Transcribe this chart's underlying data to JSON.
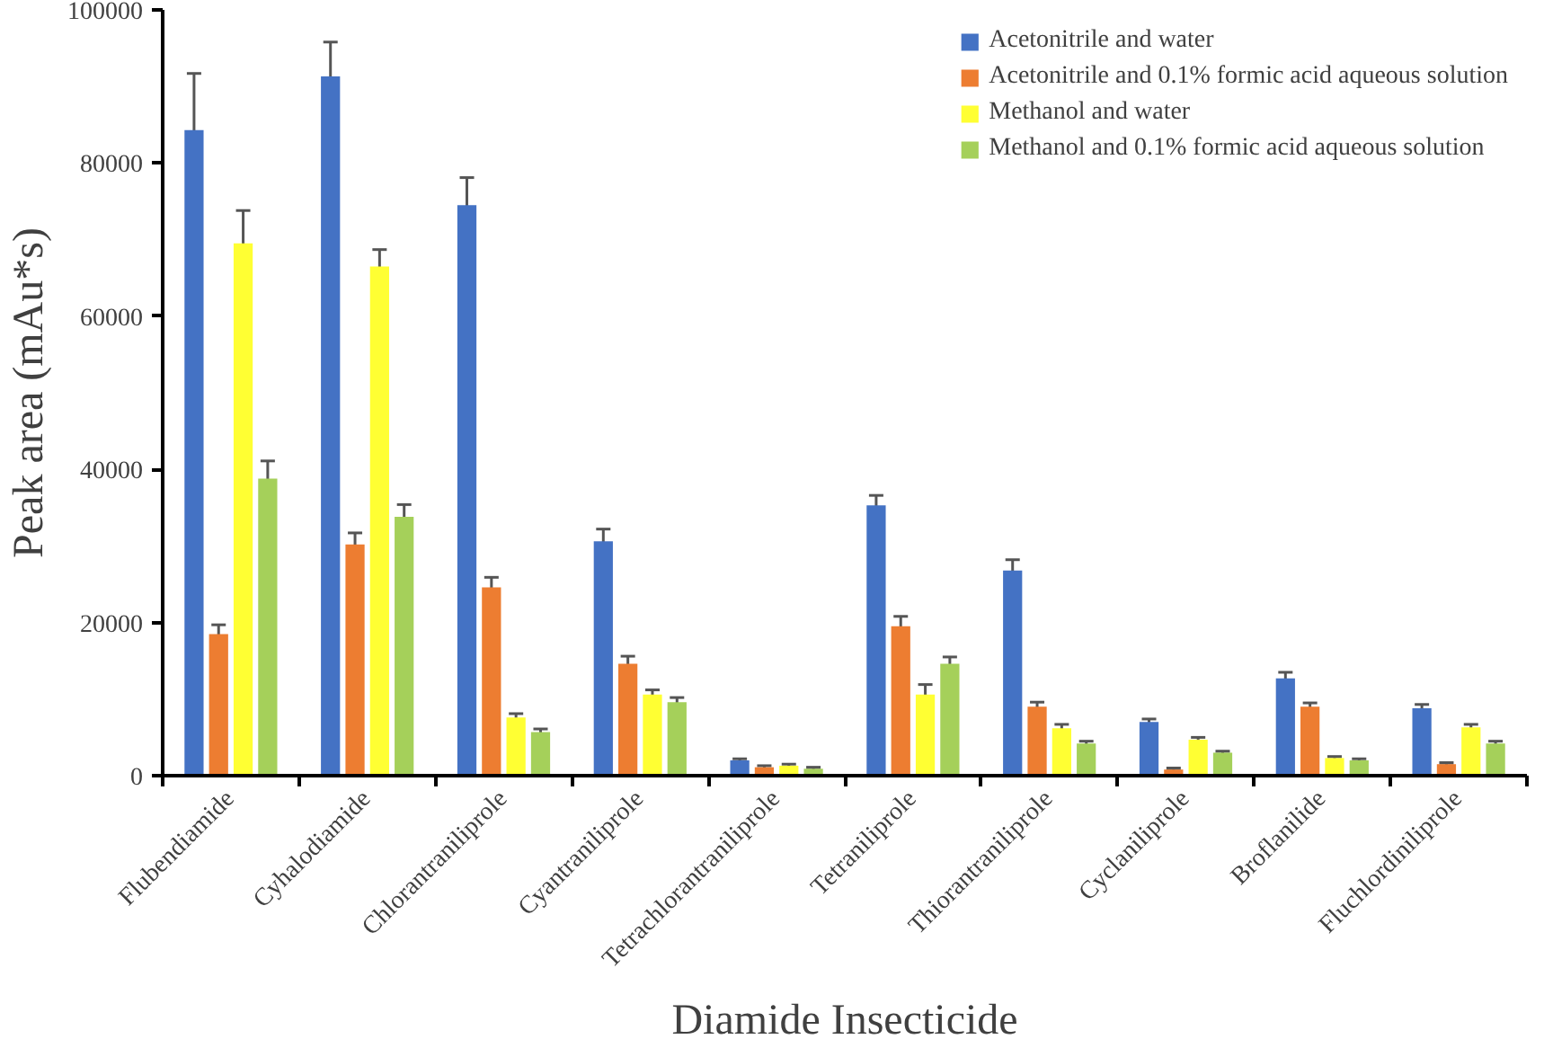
{
  "chart_data": {
    "type": "bar",
    "xlabel": "Diamide Insecticide",
    "ylabel": "Peak area (mAu*s)",
    "categories": [
      "Flubendiamide",
      "Cyhalodiamide",
      "Chlorantraniliprole",
      "Cyantraniliprole",
      "Tetrachlorantraniliprole",
      "Tetraniliprole",
      "Thiorantraniliprole",
      "Cyclaniliprole",
      "Broflanilide",
      "Fluchlordiniliprole"
    ],
    "series": [
      {
        "name": "Acetonitrile and water",
        "color": "#4472c4",
        "values": [
          84300,
          91300,
          74500,
          30600,
          2000,
          35300,
          26800,
          7000,
          12700,
          8800
        ],
        "errors": [
          7400,
          4500,
          3600,
          1600,
          200,
          1300,
          1400,
          400,
          800,
          500
        ]
      },
      {
        "name": "Acetonitrile and 0.1% formic acid aqueous solution",
        "color": "#ed7d31",
        "values": [
          18500,
          30200,
          24600,
          14600,
          1100,
          19500,
          9000,
          800,
          9000,
          1500
        ],
        "errors": [
          1200,
          1500,
          1300,
          1000,
          200,
          1300,
          600,
          200,
          500,
          200
        ]
      },
      {
        "name": "Methanol and water",
        "color": "#ffff33",
        "values": [
          69500,
          66500,
          7600,
          10600,
          1300,
          10600,
          6200,
          4700,
          2300,
          6300
        ],
        "errors": [
          4300,
          2200,
          500,
          600,
          200,
          1300,
          500,
          300,
          200,
          400
        ]
      },
      {
        "name": "Methanol and 0.1% formic acid aqueous solution",
        "color": "#a5d05a",
        "values": [
          38800,
          33800,
          5700,
          9600,
          900,
          14600,
          4200,
          3000,
          2000,
          4200
        ],
        "errors": [
          2300,
          1600,
          400,
          600,
          200,
          900,
          300,
          200,
          200,
          300
        ]
      }
    ],
    "ylim": [
      0,
      100000
    ],
    "yticks": [
      0,
      20000,
      40000,
      60000,
      80000,
      100000
    ],
    "grid": false,
    "legend": "top right"
  }
}
